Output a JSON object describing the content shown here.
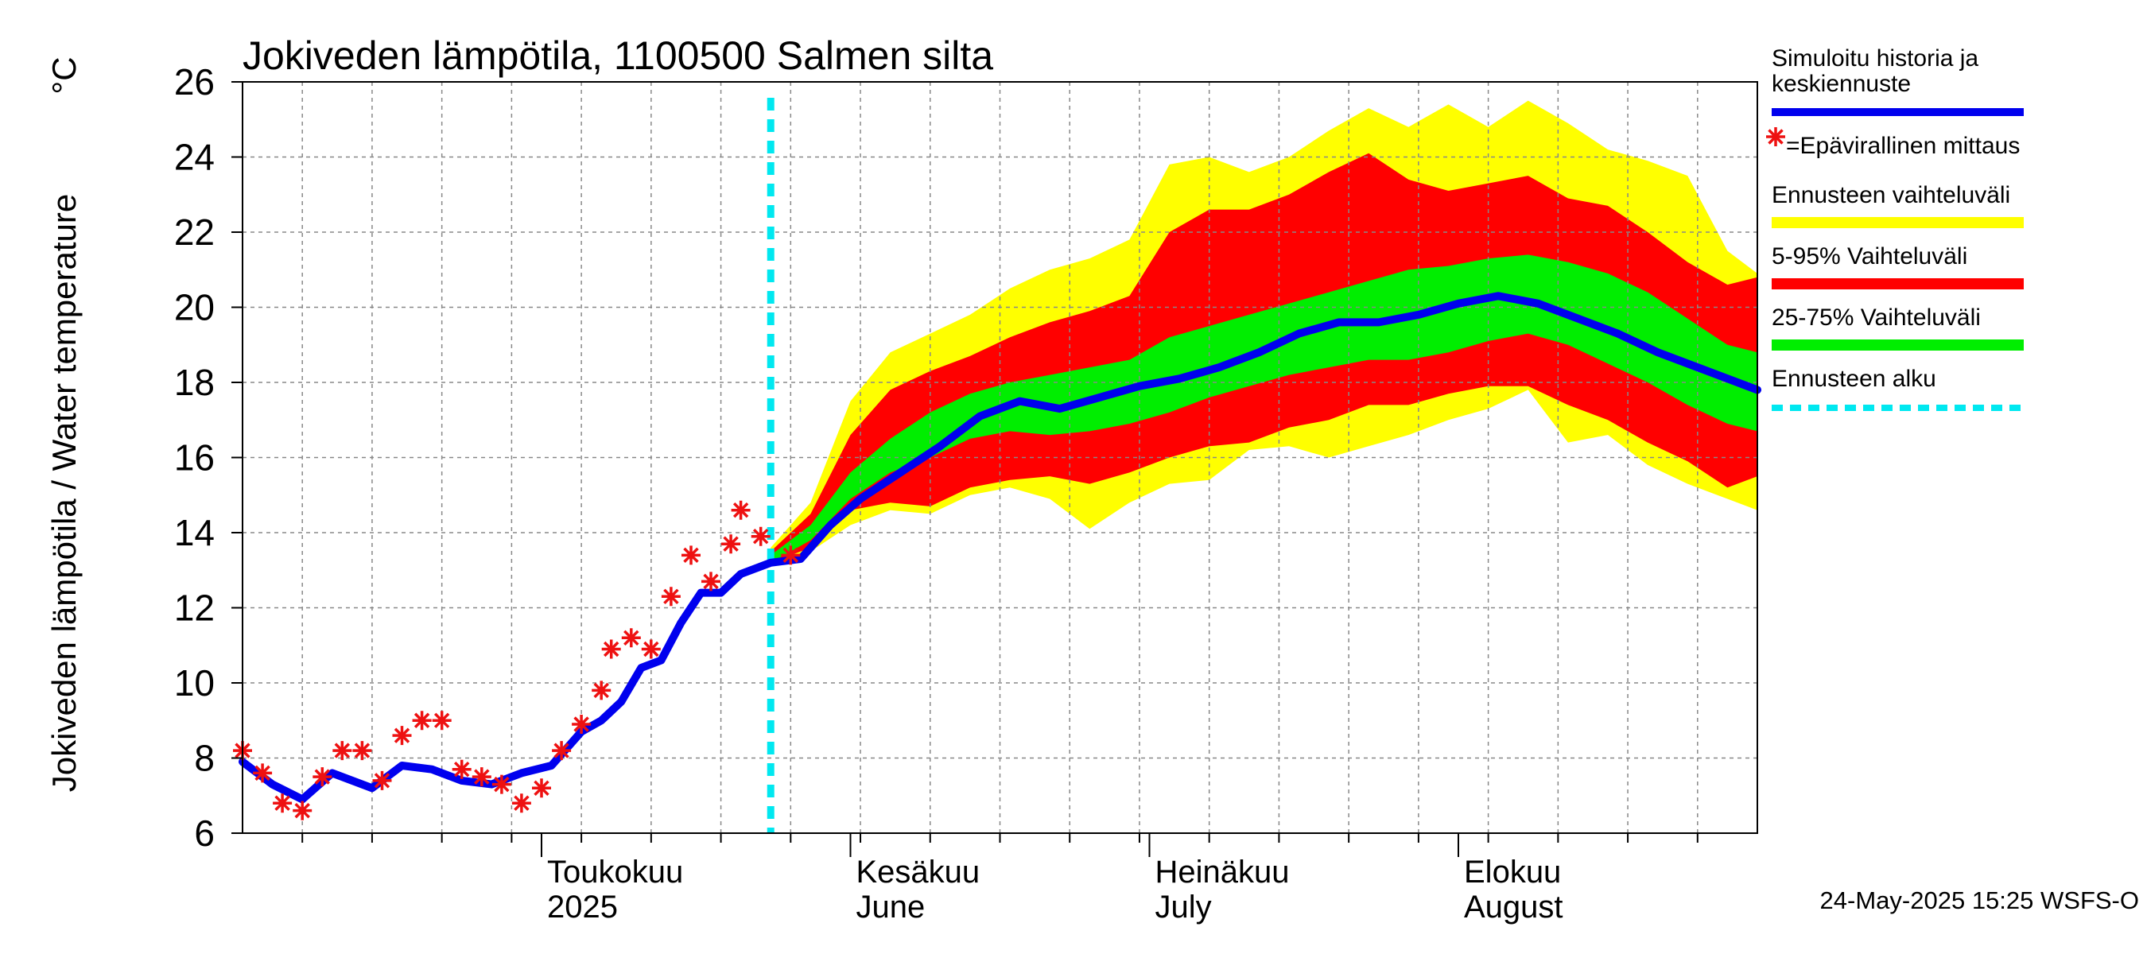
{
  "chart_data": {
    "type": "area",
    "title": "Jokiveden lämpötila, 1100500 Salmen silta",
    "ylabel": "Jokiveden lämpötila / Water temperature",
    "yunit": "°C",
    "ylim": [
      6,
      26
    ],
    "yticks": [
      6,
      8,
      10,
      12,
      14,
      16,
      18,
      20,
      22,
      24,
      26
    ],
    "xlim": [
      "2025-04-01",
      "2025-08-31"
    ],
    "grid": true,
    "legend_position": "right",
    "month_labels": [
      {
        "date": "2025-05-01",
        "fi": "Toukokuu",
        "en": "2025"
      },
      {
        "date": "2025-06-01",
        "fi": "Kesäkuu",
        "en": "June"
      },
      {
        "date": "2025-07-01",
        "fi": "Heinäkuu",
        "en": "July"
      },
      {
        "date": "2025-08-01",
        "fi": "Elokuu",
        "en": "August"
      }
    ],
    "forecast_start": "2025-05-24",
    "colors": {
      "history": "#0000ee",
      "observation": "#ee1111",
      "range_full": "#ffff00",
      "range_5_95": "#ff0000",
      "range_25_75": "#00ee00",
      "forecast_start": "#00e8f0",
      "grid": "#888888"
    },
    "series": [
      {
        "name": "Simuloitu historia ja keskiennuste",
        "x": [
          "2025-04-01",
          "2025-04-04",
          "2025-04-07",
          "2025-04-10",
          "2025-04-14",
          "2025-04-17",
          "2025-04-20",
          "2025-04-23",
          "2025-04-26",
          "2025-04-29",
          "2025-05-02",
          "2025-05-05",
          "2025-05-07",
          "2025-05-09",
          "2025-05-11",
          "2025-05-13",
          "2025-05-15",
          "2025-05-17",
          "2025-05-19",
          "2025-05-21",
          "2025-05-24",
          "2025-05-27",
          "2025-05-30",
          "2025-06-02",
          "2025-06-06",
          "2025-06-10",
          "2025-06-14",
          "2025-06-18",
          "2025-06-22",
          "2025-06-26",
          "2025-06-30",
          "2025-07-04",
          "2025-07-08",
          "2025-07-12",
          "2025-07-16",
          "2025-07-20",
          "2025-07-24",
          "2025-07-28",
          "2025-08-01",
          "2025-08-05",
          "2025-08-09",
          "2025-08-13",
          "2025-08-17",
          "2025-08-21",
          "2025-08-25",
          "2025-08-31"
        ],
        "values": [
          7.9,
          7.3,
          6.9,
          7.6,
          7.2,
          7.8,
          7.7,
          7.4,
          7.3,
          7.6,
          7.8,
          8.7,
          9.0,
          9.5,
          10.4,
          10.6,
          11.6,
          12.4,
          12.4,
          12.9,
          13.2,
          13.3,
          14.2,
          14.9,
          15.6,
          16.3,
          17.1,
          17.5,
          17.3,
          17.6,
          17.9,
          18.1,
          18.4,
          18.8,
          19.3,
          19.6,
          19.6,
          19.8,
          20.1,
          20.3,
          20.1,
          19.7,
          19.3,
          18.8,
          18.4,
          17.8
        ]
      },
      {
        "name": "Epävirallinen mittaus",
        "x": [
          "2025-04-01",
          "2025-04-03",
          "2025-04-05",
          "2025-04-07",
          "2025-04-09",
          "2025-04-11",
          "2025-04-13",
          "2025-04-15",
          "2025-04-17",
          "2025-04-19",
          "2025-04-21",
          "2025-04-23",
          "2025-04-25",
          "2025-04-27",
          "2025-04-29",
          "2025-05-01",
          "2025-05-03",
          "2025-05-05",
          "2025-05-07",
          "2025-05-08",
          "2025-05-10",
          "2025-05-12",
          "2025-05-14",
          "2025-05-16",
          "2025-05-18",
          "2025-05-20",
          "2025-05-21",
          "2025-05-23",
          "2025-05-26"
        ],
        "values": [
          8.2,
          7.6,
          6.8,
          6.6,
          7.5,
          8.2,
          8.2,
          7.4,
          8.6,
          9.0,
          9.0,
          7.7,
          7.5,
          7.3,
          6.8,
          7.2,
          8.2,
          8.9,
          9.8,
          10.9,
          11.2,
          10.9,
          12.3,
          13.4,
          12.7,
          13.7,
          14.6,
          13.9,
          13.4
        ]
      }
    ],
    "bands": [
      {
        "name": "Ennusteen vaihteluväli",
        "x": [
          "2025-05-24",
          "2025-05-28",
          "2025-06-01",
          "2025-06-05",
          "2025-06-09",
          "2025-06-13",
          "2025-06-17",
          "2025-06-21",
          "2025-06-25",
          "2025-06-29",
          "2025-07-03",
          "2025-07-07",
          "2025-07-11",
          "2025-07-15",
          "2025-07-19",
          "2025-07-23",
          "2025-07-27",
          "2025-07-31",
          "2025-08-04",
          "2025-08-08",
          "2025-08-12",
          "2025-08-16",
          "2025-08-20",
          "2025-08-24",
          "2025-08-28",
          "2025-08-31"
        ],
        "upper": [
          13.6,
          14.8,
          17.5,
          18.8,
          19.3,
          19.8,
          20.5,
          21.0,
          21.3,
          21.8,
          23.8,
          24.0,
          23.6,
          24.0,
          24.7,
          25.3,
          24.8,
          25.4,
          24.8,
          25.5,
          24.9,
          24.2,
          23.9,
          23.5,
          21.5,
          20.9
        ],
        "lower": [
          13.2,
          13.5,
          14.2,
          14.6,
          14.5,
          15.0,
          15.2,
          14.9,
          14.1,
          14.8,
          15.3,
          15.4,
          16.2,
          16.3,
          16.0,
          16.3,
          16.6,
          17.0,
          17.3,
          17.8,
          16.4,
          16.6,
          15.8,
          15.3,
          14.9,
          14.6
        ]
      },
      {
        "name": "5-95% Vaihteluväli",
        "x": [
          "2025-05-24",
          "2025-05-28",
          "2025-06-01",
          "2025-06-05",
          "2025-06-09",
          "2025-06-13",
          "2025-06-17",
          "2025-06-21",
          "2025-06-25",
          "2025-06-29",
          "2025-07-03",
          "2025-07-07",
          "2025-07-11",
          "2025-07-15",
          "2025-07-19",
          "2025-07-23",
          "2025-07-27",
          "2025-07-31",
          "2025-08-04",
          "2025-08-08",
          "2025-08-12",
          "2025-08-16",
          "2025-08-20",
          "2025-08-24",
          "2025-08-28",
          "2025-08-31"
        ],
        "upper": [
          13.5,
          14.5,
          16.6,
          17.8,
          18.3,
          18.7,
          19.2,
          19.6,
          19.9,
          20.3,
          22.0,
          22.6,
          22.6,
          23.0,
          23.6,
          24.1,
          23.4,
          23.1,
          23.3,
          23.5,
          22.9,
          22.7,
          22.0,
          21.2,
          20.6,
          20.8
        ],
        "lower": [
          13.2,
          13.6,
          14.6,
          14.8,
          14.7,
          15.2,
          15.4,
          15.5,
          15.3,
          15.6,
          16.0,
          16.3,
          16.4,
          16.8,
          17.0,
          17.4,
          17.4,
          17.7,
          17.9,
          17.9,
          17.4,
          17.0,
          16.4,
          15.9,
          15.2,
          15.5
        ]
      },
      {
        "name": "25-75% Vaihteluväli",
        "x": [
          "2025-05-24",
          "2025-05-28",
          "2025-06-01",
          "2025-06-05",
          "2025-06-09",
          "2025-06-13",
          "2025-06-17",
          "2025-06-21",
          "2025-06-25",
          "2025-06-29",
          "2025-07-03",
          "2025-07-07",
          "2025-07-11",
          "2025-07-15",
          "2025-07-19",
          "2025-07-23",
          "2025-07-27",
          "2025-07-31",
          "2025-08-04",
          "2025-08-08",
          "2025-08-12",
          "2025-08-16",
          "2025-08-20",
          "2025-08-24",
          "2025-08-28",
          "2025-08-31"
        ],
        "upper": [
          13.4,
          14.2,
          15.6,
          16.5,
          17.2,
          17.7,
          18.0,
          18.2,
          18.4,
          18.6,
          19.2,
          19.5,
          19.8,
          20.1,
          20.4,
          20.7,
          21.0,
          21.1,
          21.3,
          21.4,
          21.2,
          20.9,
          20.4,
          19.7,
          19.0,
          18.8
        ],
        "lower": [
          13.2,
          13.8,
          14.9,
          15.6,
          16.0,
          16.5,
          16.7,
          16.6,
          16.7,
          16.9,
          17.2,
          17.6,
          17.9,
          18.2,
          18.4,
          18.6,
          18.6,
          18.8,
          19.1,
          19.3,
          19.0,
          18.5,
          18.0,
          17.4,
          16.9,
          16.7
        ]
      }
    ]
  },
  "legend": [
    {
      "lines": [
        "Simuloitu historia ja",
        "keskiennuste"
      ],
      "type": "line",
      "color": "#0000ee"
    },
    {
      "lines": [
        "=Epävirallinen mittaus"
      ],
      "type": "star",
      "color": "#ee1111"
    },
    {
      "lines": [
        "Ennusteen vaihteluväli"
      ],
      "type": "band",
      "color": "#ffff00"
    },
    {
      "lines": [
        "5-95% Vaihteluväli"
      ],
      "type": "band",
      "color": "#ff0000"
    },
    {
      "lines": [
        "25-75% Vaihteluväli"
      ],
      "type": "band",
      "color": "#00ee00"
    },
    {
      "lines": [
        "Ennusteen alku"
      ],
      "type": "dash",
      "color": "#00e8f0"
    }
  ],
  "footer": "24-May-2025 15:25 WSFS-O"
}
